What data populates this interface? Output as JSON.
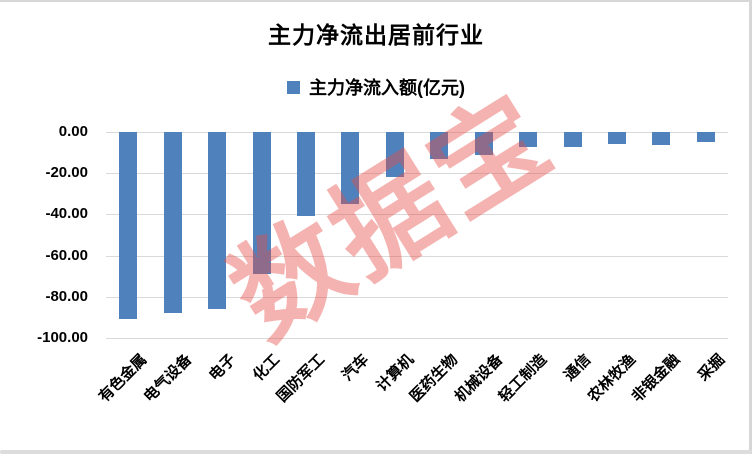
{
  "title": "主力净流出居前行业",
  "legend": {
    "label": "主力净流入额(亿元)",
    "swatch_color": "#4f81bd"
  },
  "watermark": {
    "text": "数据宝",
    "color": "#e64d46",
    "opacity": 0.42
  },
  "chart_data": {
    "type": "bar",
    "title": "主力净流出居前行业",
    "series_name": "主力净流入额(亿元)",
    "unit": "亿元",
    "categories": [
      "有色金属",
      "电气设备",
      "电子",
      "化工",
      "国防军工",
      "汽车",
      "计算机",
      "医药生物",
      "机械设备",
      "轻工制造",
      "通信",
      "农林牧渔",
      "非银金融",
      "采掘"
    ],
    "values": [
      -91,
      -88,
      -86,
      -69,
      -41,
      -35,
      -22,
      -13,
      -11,
      -7.5,
      -7.2,
      -5.9,
      -6.1,
      -5
    ],
    "ylim": [
      -100,
      0
    ],
    "yticks": [
      0,
      -20,
      -40,
      -60,
      -80,
      -100
    ],
    "ytick_labels": [
      "0.00",
      "-20.00",
      "-40.00",
      "-60.00",
      "-80.00",
      "-100.00"
    ],
    "xlabel": "",
    "ylabel": "",
    "grid": true,
    "legend_position": "top",
    "bar_color": "#4f81bd",
    "gridline_color": "#d9d9d9"
  }
}
